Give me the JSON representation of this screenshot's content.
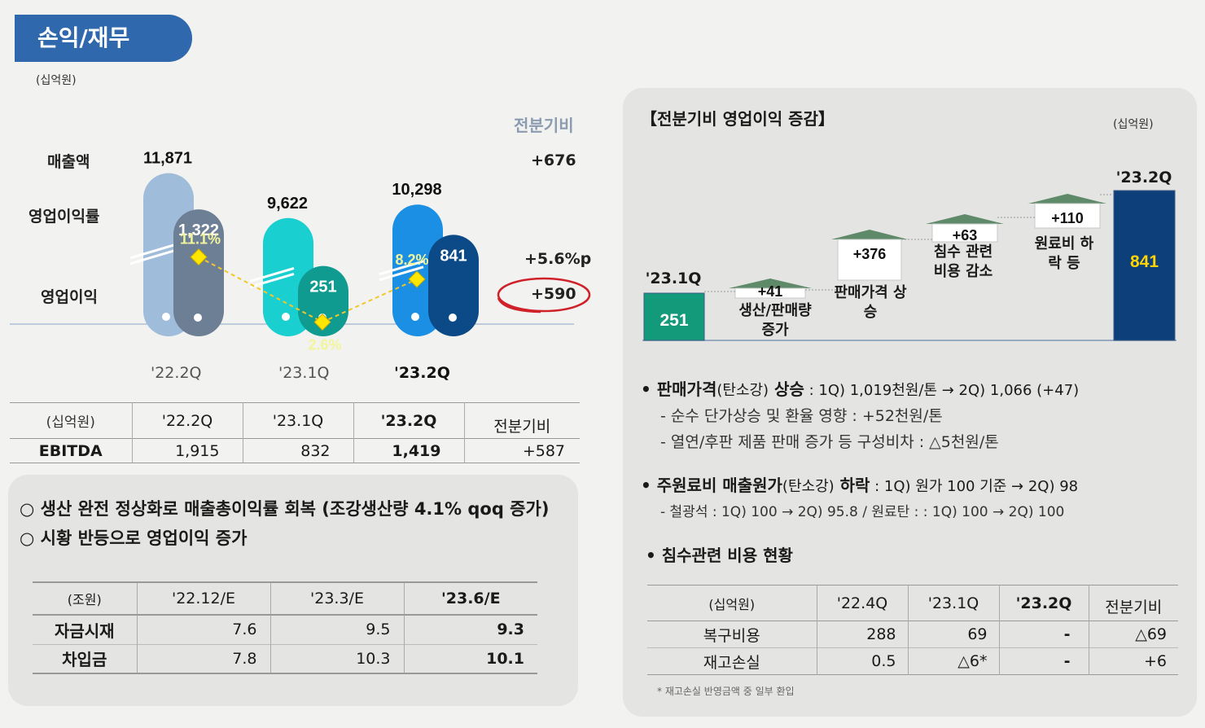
{
  "page": {
    "title": "손익/재무",
    "unit": "(십억원)"
  },
  "left_chart": {
    "unit": "(십억원)",
    "row_labels": [
      "매출액",
      "영업이익률",
      "영업이익"
    ],
    "comparison_header": "전분기비",
    "comparison": {
      "revenue": "+676",
      "margin": "+5.6%p",
      "op_profit": "+590"
    }
  },
  "chart_data": [
    {
      "type": "bar",
      "categories": [
        "'22.2Q",
        "'23.1Q",
        "'23.2Q"
      ],
      "series": [
        {
          "name": "매출액",
          "values": [
            11871,
            9622,
            10298
          ]
        },
        {
          "name": "영업이익",
          "values": [
            1322,
            251,
            841
          ]
        },
        {
          "name": "영업이익률",
          "values": [
            11.1,
            2.6,
            8.2
          ]
        }
      ],
      "value_labels": {
        "revenue": [
          "11,871",
          "9,622",
          "10,298"
        ],
        "op_profit": [
          "1,322",
          "251",
          "841"
        ],
        "margin": [
          "11.1%",
          "2.6%",
          "8.2%"
        ]
      }
    },
    {
      "type": "bar",
      "title": "【전분기비 영업이익 증감】",
      "unit": "(십억원)",
      "steps": [
        {
          "label": "'23.1Q",
          "value": 251,
          "display": "251",
          "kind": "start"
        },
        {
          "label": "생산/판매량 증가",
          "value": 41,
          "display": "+41",
          "kind": "delta"
        },
        {
          "label": "판매가격 상승",
          "value": 376,
          "display": "+376",
          "kind": "delta"
        },
        {
          "label": "침수 관련 비용 감소",
          "value": 63,
          "display": "+63",
          "kind": "delta"
        },
        {
          "label": "원료비 하락 등",
          "value": 110,
          "display": "+110",
          "kind": "delta"
        },
        {
          "label": "'23.2Q",
          "value": 841,
          "display": "841",
          "kind": "end"
        }
      ]
    }
  ],
  "ebitda_table": {
    "headers": [
      "(십억원)",
      "'22.2Q",
      "'23.1Q",
      "'23.2Q",
      "전분기비"
    ],
    "row": [
      "EBITDA",
      "1,915",
      "832",
      "1,419",
      "+587"
    ]
  },
  "notes": [
    "○ 생산 완전 정상화로 매출총이익률 회복 (조강생산량 4.1% qoq 증가)",
    "○ 시황 반등으로 영업이익 증가"
  ],
  "cash_table": {
    "headers": [
      "(조원)",
      "'22.12/E",
      "'23.3/E",
      "'23.6/E"
    ],
    "rows": [
      [
        "자금시재",
        "7.6",
        "9.5",
        "9.3"
      ],
      [
        "차입금",
        "7.8",
        "10.3",
        "10.1"
      ]
    ]
  },
  "bullets": {
    "price": {
      "head": "• 판매가격",
      "tag": "(탄소강)",
      "head2": " 상승",
      "tail": " : 1Q) 1,019천원/톤 → 2Q) 1,066 (+47)",
      "subs": [
        "- 순수 단가상승 및 환율 영향 : +52천원/톤",
        "- 열연/후판 제품 판매 증가 등 구성비차 : △5천원/톤"
      ]
    },
    "material": {
      "head": "• 주원료비 매출원가",
      "tag": "(탄소강)",
      "head2": " 하락",
      "tail": " : 1Q) 원가 100 기준 → 2Q) 98",
      "subs": [
        "- 철광석 : 1Q) 100 → 2Q) 95.8   / 원료탄 : : 1Q) 100 → 2Q) 100"
      ]
    },
    "flood_head": "• 침수관련 비용 현황"
  },
  "flood_table": {
    "headers": [
      "(십억원)",
      "'22.4Q",
      "'23.1Q",
      "'23.2Q",
      "전분기비"
    ],
    "rows": [
      [
        "복구비용",
        "288",
        "69",
        "-",
        "△69"
      ],
      [
        "재고손실",
        "0.5",
        "△6*",
        "-",
        "+6"
      ]
    ],
    "footnote": "* 재고손실 반영금액 중 일부 환입"
  },
  "colors": {
    "title_tab": "#2f68ad",
    "rev_22": "#9fbcdb",
    "op_22": "#6d7f95",
    "rev_23_1": "#19cfd0",
    "op_23_1": "#0f9b8f",
    "rev_23_2": "#1a8fe3",
    "op_23_2": "#0b4a86",
    "wf_start": "#139a7a",
    "wf_end": "#0d3f7a",
    "margin_marker": "#ffe600"
  }
}
